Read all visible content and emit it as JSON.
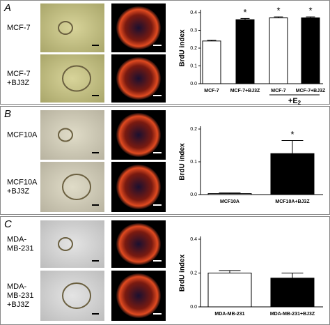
{
  "panels": [
    {
      "letter": "A",
      "rows": [
        [
          "MCF-7"
        ],
        [
          "MCF-7",
          "+BJ3Z"
        ]
      ]
    },
    {
      "letter": "B",
      "rows": [
        [
          "MCF10A"
        ],
        [
          "MCF10A",
          "+BJ3Z"
        ]
      ]
    },
    {
      "letter": "C",
      "rows": [
        [
          "MDA-",
          "MB-231"
        ],
        [
          "MDA-",
          "MB-231",
          "+BJ3Z"
        ]
      ]
    }
  ],
  "chart_data": [
    {
      "type": "bar",
      "y_label": "BrdU index",
      "categories": [
        "MCF-7",
        "MCF-7+BJ3Z",
        "MCF-7",
        "MCF-7+BJ3Z"
      ],
      "values": [
        0.24,
        0.36,
        0.37,
        0.37
      ],
      "errors": [
        0.005,
        0.007,
        0.006,
        0.006
      ],
      "colors": [
        "#ffffff",
        "#000000",
        "#ffffff",
        "#000000"
      ],
      "significance": [
        null,
        "*",
        "*",
        "*"
      ],
      "group_label": {
        "text": "+E",
        "subscript": "2"
      },
      "ylim": [
        0,
        0.4
      ],
      "yticks": [
        {
          "value": 0,
          "label": "0.0"
        },
        0.1,
        0.2,
        0.3,
        0.4
      ]
    },
    {
      "type": "bar",
      "y_label": "BrdU index",
      "categories": [
        "MCF10A",
        "MCF10A+BJ3Z"
      ],
      "values": [
        0.003,
        0.125
      ],
      "errors": [
        0.002,
        0.04
      ],
      "colors": [
        "#ffffff",
        "#000000"
      ],
      "significance": [
        null,
        "*"
      ],
      "ylim": [
        0,
        0.2
      ],
      "yticks": [
        {
          "value": 0,
          "label": "0.0"
        },
        0.1,
        0.2
      ]
    },
    {
      "type": "bar",
      "y_label": "BrdU index",
      "categories": [
        "MDA-MB-231",
        "MDA-MB-231+BJ3Z"
      ],
      "values": [
        0.2,
        0.17
      ],
      "errors": [
        0.015,
        0.03
      ],
      "colors": [
        "#ffffff",
        "#000000"
      ],
      "significance": [
        null,
        null
      ],
      "ylim": [
        0,
        0.4
      ],
      "yticks": [
        {
          "value": 0,
          "label": "0.0"
        },
        0.2,
        0.4
      ]
    }
  ]
}
